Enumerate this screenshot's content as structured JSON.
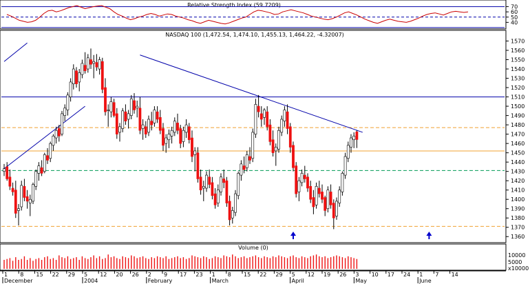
{
  "chart_data": [
    {
      "id": "rsi",
      "type": "line",
      "title": "Relative Strength Index (59.7209)",
      "y_ticks": [
        40,
        50,
        60,
        70
      ],
      "ylim": [
        30,
        80
      ],
      "reference_lines": [
        30,
        50,
        70
      ],
      "colors": {
        "line": "#cc0000",
        "reference": "#0000aa"
      },
      "values": [
        55,
        52,
        48,
        44,
        42,
        40,
        41,
        44,
        50,
        57,
        62,
        63,
        60,
        62,
        65,
        68,
        70,
        72,
        69,
        66,
        68,
        70,
        71,
        72,
        69,
        66,
        60,
        55,
        52,
        48,
        45,
        47,
        50,
        52,
        55,
        57,
        55,
        52,
        54,
        56,
        55,
        52,
        50,
        48,
        45,
        43,
        40,
        38,
        41,
        44,
        42,
        40,
        38,
        37,
        39,
        42,
        45,
        48,
        50,
        55,
        60,
        63,
        62,
        60,
        58,
        55,
        56,
        60,
        62,
        64,
        62,
        60,
        58,
        55,
        52,
        50,
        48,
        46,
        45,
        47,
        50,
        54,
        58,
        60,
        57,
        54,
        50,
        46,
        43,
        40,
        38,
        41,
        44,
        46,
        44,
        42,
        41,
        40,
        42,
        45,
        48,
        52,
        55,
        57,
        58,
        56,
        54,
        57,
        60,
        61,
        60,
        59,
        60
      ]
    },
    {
      "id": "price",
      "type": "candlestick",
      "title": "NASDAQ 100 (1,472.54, 1,474.10, 1,455.13, 1,464.22, -4.32007)",
      "ylim": [
        1355,
        1580
      ],
      "y_ticks": [
        1360,
        1370,
        1380,
        1390,
        1400,
        1410,
        1420,
        1430,
        1440,
        1450,
        1460,
        1470,
        1480,
        1490,
        1500,
        1510,
        1520,
        1530,
        1540,
        1550,
        1560,
        1570
      ],
      "colors": {
        "up": "#ffffff",
        "down": "#ee1111",
        "trendline": "#0000aa",
        "resistance": "#0000aa",
        "support_dashed": "#f0a030",
        "mid_dashed": "#009955"
      },
      "horizontal_lines": [
        {
          "value": 1510,
          "style": "solid",
          "color": "#0000aa"
        },
        {
          "value": 1477,
          "style": "dashed",
          "color": "#f0a030"
        },
        {
          "value": 1452,
          "style": "solid",
          "color": "#f0a030"
        },
        {
          "value": 1431,
          "style": "dashed",
          "color": "#009955"
        },
        {
          "value": 1371,
          "style": "dashed",
          "color": "#f0a030"
        }
      ],
      "trendlines": [
        {
          "from_bar": 47,
          "from_value": 1555,
          "to_bar": 124,
          "to_value": 1472
        },
        {
          "from_bar": 0,
          "from_value": 1433,
          "to_bar": 28,
          "to_value": 1500
        },
        {
          "from_bar": 0,
          "from_value": 1548,
          "to_bar": 8,
          "to_value": 1568
        }
      ],
      "arrow_bars": [
        100,
        147
      ],
      "candles": [
        {
          "o": 1430,
          "h": 1438,
          "l": 1425,
          "c": 1433
        },
        {
          "o": 1435,
          "h": 1440,
          "l": 1420,
          "c": 1422
        },
        {
          "o": 1424,
          "h": 1432,
          "l": 1410,
          "c": 1414
        },
        {
          "o": 1412,
          "h": 1418,
          "l": 1404,
          "c": 1408
        },
        {
          "o": 1410,
          "h": 1420,
          "l": 1380,
          "c": 1385
        },
        {
          "o": 1388,
          "h": 1395,
          "l": 1372,
          "c": 1390
        },
        {
          "o": 1392,
          "h": 1420,
          "l": 1388,
          "c": 1415
        },
        {
          "o": 1414,
          "h": 1422,
          "l": 1398,
          "c": 1402
        },
        {
          "o": 1403,
          "h": 1410,
          "l": 1390,
          "c": 1398
        },
        {
          "o": 1396,
          "h": 1405,
          "l": 1382,
          "c": 1400
        },
        {
          "o": 1398,
          "h": 1418,
          "l": 1395,
          "c": 1416
        },
        {
          "o": 1414,
          "h": 1432,
          "l": 1410,
          "c": 1430
        },
        {
          "o": 1428,
          "h": 1440,
          "l": 1420,
          "c": 1436
        },
        {
          "o": 1434,
          "h": 1442,
          "l": 1425,
          "c": 1428
        },
        {
          "o": 1430,
          "h": 1450,
          "l": 1428,
          "c": 1448
        },
        {
          "o": 1447,
          "h": 1455,
          "l": 1438,
          "c": 1442
        },
        {
          "o": 1444,
          "h": 1462,
          "l": 1440,
          "c": 1460
        },
        {
          "o": 1458,
          "h": 1470,
          "l": 1452,
          "c": 1468
        },
        {
          "o": 1466,
          "h": 1478,
          "l": 1460,
          "c": 1474
        },
        {
          "o": 1476,
          "h": 1480,
          "l": 1462,
          "c": 1468
        },
        {
          "o": 1470,
          "h": 1495,
          "l": 1468,
          "c": 1492
        },
        {
          "o": 1490,
          "h": 1502,
          "l": 1484,
          "c": 1498
        },
        {
          "o": 1496,
          "h": 1515,
          "l": 1490,
          "c": 1512
        },
        {
          "o": 1510,
          "h": 1530,
          "l": 1505,
          "c": 1526
        },
        {
          "o": 1524,
          "h": 1545,
          "l": 1518,
          "c": 1540
        },
        {
          "o": 1538,
          "h": 1542,
          "l": 1520,
          "c": 1524
        },
        {
          "o": 1526,
          "h": 1540,
          "l": 1516,
          "c": 1536
        },
        {
          "o": 1534,
          "h": 1550,
          "l": 1530,
          "c": 1546
        },
        {
          "o": 1544,
          "h": 1558,
          "l": 1535,
          "c": 1538
        },
        {
          "o": 1540,
          "h": 1556,
          "l": 1536,
          "c": 1552
        },
        {
          "o": 1550,
          "h": 1562,
          "l": 1540,
          "c": 1545
        },
        {
          "o": 1546,
          "h": 1555,
          "l": 1530,
          "c": 1548
        },
        {
          "o": 1547,
          "h": 1556,
          "l": 1538,
          "c": 1542
        },
        {
          "o": 1540,
          "h": 1553,
          "l": 1534,
          "c": 1550
        },
        {
          "o": 1548,
          "h": 1552,
          "l": 1514,
          "c": 1518
        },
        {
          "o": 1520,
          "h": 1530,
          "l": 1490,
          "c": 1494
        },
        {
          "o": 1496,
          "h": 1502,
          "l": 1478,
          "c": 1496
        },
        {
          "o": 1494,
          "h": 1510,
          "l": 1488,
          "c": 1505
        },
        {
          "o": 1504,
          "h": 1508,
          "l": 1488,
          "c": 1490
        },
        {
          "o": 1492,
          "h": 1498,
          "l": 1465,
          "c": 1470
        },
        {
          "o": 1472,
          "h": 1482,
          "l": 1462,
          "c": 1478
        },
        {
          "o": 1476,
          "h": 1498,
          "l": 1472,
          "c": 1495
        },
        {
          "o": 1494,
          "h": 1502,
          "l": 1480,
          "c": 1484
        },
        {
          "o": 1486,
          "h": 1496,
          "l": 1476,
          "c": 1492
        },
        {
          "o": 1490,
          "h": 1512,
          "l": 1486,
          "c": 1508
        },
        {
          "o": 1506,
          "h": 1514,
          "l": 1492,
          "c": 1496
        },
        {
          "o": 1498,
          "h": 1506,
          "l": 1488,
          "c": 1500
        },
        {
          "o": 1498,
          "h": 1510,
          "l": 1470,
          "c": 1474
        },
        {
          "o": 1476,
          "h": 1486,
          "l": 1464,
          "c": 1480
        },
        {
          "o": 1478,
          "h": 1484,
          "l": 1466,
          "c": 1470
        },
        {
          "o": 1472,
          "h": 1490,
          "l": 1468,
          "c": 1486
        },
        {
          "o": 1484,
          "h": 1494,
          "l": 1474,
          "c": 1480
        },
        {
          "o": 1482,
          "h": 1500,
          "l": 1478,
          "c": 1496
        },
        {
          "o": 1494,
          "h": 1500,
          "l": 1482,
          "c": 1486
        },
        {
          "o": 1488,
          "h": 1496,
          "l": 1470,
          "c": 1474
        },
        {
          "o": 1476,
          "h": 1482,
          "l": 1452,
          "c": 1458
        },
        {
          "o": 1460,
          "h": 1470,
          "l": 1450,
          "c": 1466
        },
        {
          "o": 1464,
          "h": 1475,
          "l": 1455,
          "c": 1470
        },
        {
          "o": 1468,
          "h": 1478,
          "l": 1460,
          "c": 1474
        },
        {
          "o": 1472,
          "h": 1488,
          "l": 1468,
          "c": 1484
        },
        {
          "o": 1482,
          "h": 1492,
          "l": 1470,
          "c": 1474
        },
        {
          "o": 1476,
          "h": 1480,
          "l": 1455,
          "c": 1460
        },
        {
          "o": 1462,
          "h": 1478,
          "l": 1456,
          "c": 1474
        },
        {
          "o": 1472,
          "h": 1486,
          "l": 1466,
          "c": 1480
        },
        {
          "o": 1478,
          "h": 1482,
          "l": 1460,
          "c": 1464
        },
        {
          "o": 1466,
          "h": 1474,
          "l": 1440,
          "c": 1446
        },
        {
          "o": 1448,
          "h": 1456,
          "l": 1430,
          "c": 1452
        },
        {
          "o": 1450,
          "h": 1456,
          "l": 1418,
          "c": 1422
        },
        {
          "o": 1424,
          "h": 1432,
          "l": 1405,
          "c": 1410
        },
        {
          "o": 1412,
          "h": 1420,
          "l": 1398,
          "c": 1414
        },
        {
          "o": 1412,
          "h": 1430,
          "l": 1408,
          "c": 1426
        },
        {
          "o": 1424,
          "h": 1432,
          "l": 1412,
          "c": 1416
        },
        {
          "o": 1418,
          "h": 1424,
          "l": 1400,
          "c": 1404
        },
        {
          "o": 1406,
          "h": 1412,
          "l": 1390,
          "c": 1394
        },
        {
          "o": 1396,
          "h": 1416,
          "l": 1392,
          "c": 1410
        },
        {
          "o": 1408,
          "h": 1428,
          "l": 1404,
          "c": 1424
        },
        {
          "o": 1422,
          "h": 1432,
          "l": 1412,
          "c": 1418
        },
        {
          "o": 1420,
          "h": 1424,
          "l": 1392,
          "c": 1396
        },
        {
          "o": 1398,
          "h": 1404,
          "l": 1372,
          "c": 1378
        },
        {
          "o": 1380,
          "h": 1392,
          "l": 1374,
          "c": 1388
        },
        {
          "o": 1386,
          "h": 1410,
          "l": 1382,
          "c": 1406
        },
        {
          "o": 1404,
          "h": 1430,
          "l": 1400,
          "c": 1428
        },
        {
          "o": 1426,
          "h": 1442,
          "l": 1420,
          "c": 1438
        },
        {
          "o": 1436,
          "h": 1446,
          "l": 1428,
          "c": 1432
        },
        {
          "o": 1434,
          "h": 1452,
          "l": 1430,
          "c": 1448
        },
        {
          "o": 1446,
          "h": 1456,
          "l": 1438,
          "c": 1442
        },
        {
          "o": 1444,
          "h": 1476,
          "l": 1440,
          "c": 1472
        },
        {
          "o": 1470,
          "h": 1508,
          "l": 1466,
          "c": 1502
        },
        {
          "o": 1500,
          "h": 1512,
          "l": 1488,
          "c": 1494
        },
        {
          "o": 1492,
          "h": 1500,
          "l": 1478,
          "c": 1486
        },
        {
          "o": 1488,
          "h": 1498,
          "l": 1480,
          "c": 1496
        },
        {
          "o": 1494,
          "h": 1500,
          "l": 1474,
          "c": 1478
        },
        {
          "o": 1480,
          "h": 1486,
          "l": 1458,
          "c": 1462
        },
        {
          "o": 1464,
          "h": 1474,
          "l": 1446,
          "c": 1450
        },
        {
          "o": 1452,
          "h": 1460,
          "l": 1436,
          "c": 1456
        },
        {
          "o": 1454,
          "h": 1478,
          "l": 1450,
          "c": 1474
        },
        {
          "o": 1472,
          "h": 1490,
          "l": 1468,
          "c": 1486
        },
        {
          "o": 1484,
          "h": 1500,
          "l": 1478,
          "c": 1496
        },
        {
          "o": 1494,
          "h": 1502,
          "l": 1470,
          "c": 1476
        },
        {
          "o": 1478,
          "h": 1482,
          "l": 1450,
          "c": 1456
        },
        {
          "o": 1458,
          "h": 1462,
          "l": 1430,
          "c": 1434
        },
        {
          "o": 1436,
          "h": 1440,
          "l": 1402,
          "c": 1406
        },
        {
          "o": 1408,
          "h": 1424,
          "l": 1398,
          "c": 1420
        },
        {
          "o": 1418,
          "h": 1432,
          "l": 1414,
          "c": 1428
        },
        {
          "o": 1426,
          "h": 1436,
          "l": 1418,
          "c": 1422
        },
        {
          "o": 1424,
          "h": 1428,
          "l": 1408,
          "c": 1412
        },
        {
          "o": 1414,
          "h": 1420,
          "l": 1396,
          "c": 1400
        },
        {
          "o": 1402,
          "h": 1410,
          "l": 1384,
          "c": 1392
        },
        {
          "o": 1394,
          "h": 1418,
          "l": 1390,
          "c": 1414
        },
        {
          "o": 1412,
          "h": 1420,
          "l": 1402,
          "c": 1406
        },
        {
          "o": 1408,
          "h": 1416,
          "l": 1396,
          "c": 1400
        },
        {
          "o": 1402,
          "h": 1404,
          "l": 1382,
          "c": 1388
        },
        {
          "o": 1390,
          "h": 1414,
          "l": 1386,
          "c": 1410
        },
        {
          "o": 1408,
          "h": 1416,
          "l": 1390,
          "c": 1394
        },
        {
          "o": 1396,
          "h": 1400,
          "l": 1368,
          "c": 1380
        },
        {
          "o": 1382,
          "h": 1402,
          "l": 1378,
          "c": 1398
        },
        {
          "o": 1396,
          "h": 1414,
          "l": 1392,
          "c": 1410
        },
        {
          "o": 1408,
          "h": 1430,
          "l": 1404,
          "c": 1428
        },
        {
          "o": 1426,
          "h": 1450,
          "l": 1422,
          "c": 1446
        },
        {
          "o": 1444,
          "h": 1462,
          "l": 1440,
          "c": 1458
        },
        {
          "o": 1456,
          "h": 1470,
          "l": 1450,
          "c": 1466
        },
        {
          "o": 1464,
          "h": 1472,
          "l": 1455,
          "c": 1468
        },
        {
          "o": 1472.54,
          "h": 1474.1,
          "l": 1455.13,
          "c": 1464.22
        }
      ]
    },
    {
      "id": "volume",
      "type": "bar",
      "title": "Volume (0)",
      "y_ticks": [
        "10000",
        "5000",
        "x10000"
      ],
      "colors": {
        "bar": "#ee1111"
      },
      "values": [
        0.5,
        0.55,
        0.6,
        0.45,
        0.65,
        0.5,
        0.55,
        0.7,
        0.5,
        0.6,
        0.45,
        0.55,
        0.6,
        0.5,
        0.65,
        0.7,
        0.55,
        0.6,
        0.5,
        0.75,
        0.65,
        0.6,
        0.7,
        0.55,
        0.6,
        0.65,
        0.5,
        0.7,
        0.6,
        0.55,
        0.65,
        0.75,
        0.6,
        0.7,
        0.55,
        0.6,
        0.8,
        0.65,
        0.7,
        0.6,
        0.55,
        0.7,
        0.65,
        0.6,
        0.75,
        0.7,
        0.6,
        0.65,
        0.7,
        0.6,
        0.55,
        0.65,
        0.6,
        0.7,
        0.65,
        0.6,
        0.7,
        0.55,
        0.6,
        0.65,
        0.7,
        0.6,
        0.65,
        0.55,
        0.6,
        0.75,
        0.7,
        0.65,
        0.6,
        0.7,
        0.65,
        0.55,
        0.6,
        0.7,
        0.65,
        0.6,
        0.75,
        0.7,
        0.65,
        0.8,
        0.7,
        0.6,
        0.65,
        0.7,
        0.6,
        0.65,
        0.7,
        0.75,
        0.65,
        0.6,
        0.7,
        0.65,
        0.6,
        0.7,
        0.65,
        0.75,
        0.7,
        0.65,
        0.6,
        0.7,
        0.75,
        0.65,
        0.6,
        0.7,
        0.65,
        0.6,
        0.7,
        0.75,
        0.8,
        0.7,
        0.65,
        0.7,
        0.6,
        0.65,
        0.7,
        0.75,
        0.7,
        0.65,
        0.6,
        0.7,
        0.65,
        0.6,
        0.55
      ]
    }
  ],
  "x_axis": {
    "tick_labels": [
      "1",
      "8",
      "15",
      "22",
      "29",
      "5",
      "12",
      "20",
      "26",
      "2",
      "9",
      "17",
      "23",
      "1",
      "8",
      "15",
      "22",
      "29",
      "5",
      "12",
      "19",
      "26",
      "3",
      "10",
      "17",
      "24",
      "1",
      "7",
      "14"
    ],
    "month_labels": [
      "December",
      "2004",
      "February",
      "March",
      "April",
      "May",
      "June"
    ]
  }
}
